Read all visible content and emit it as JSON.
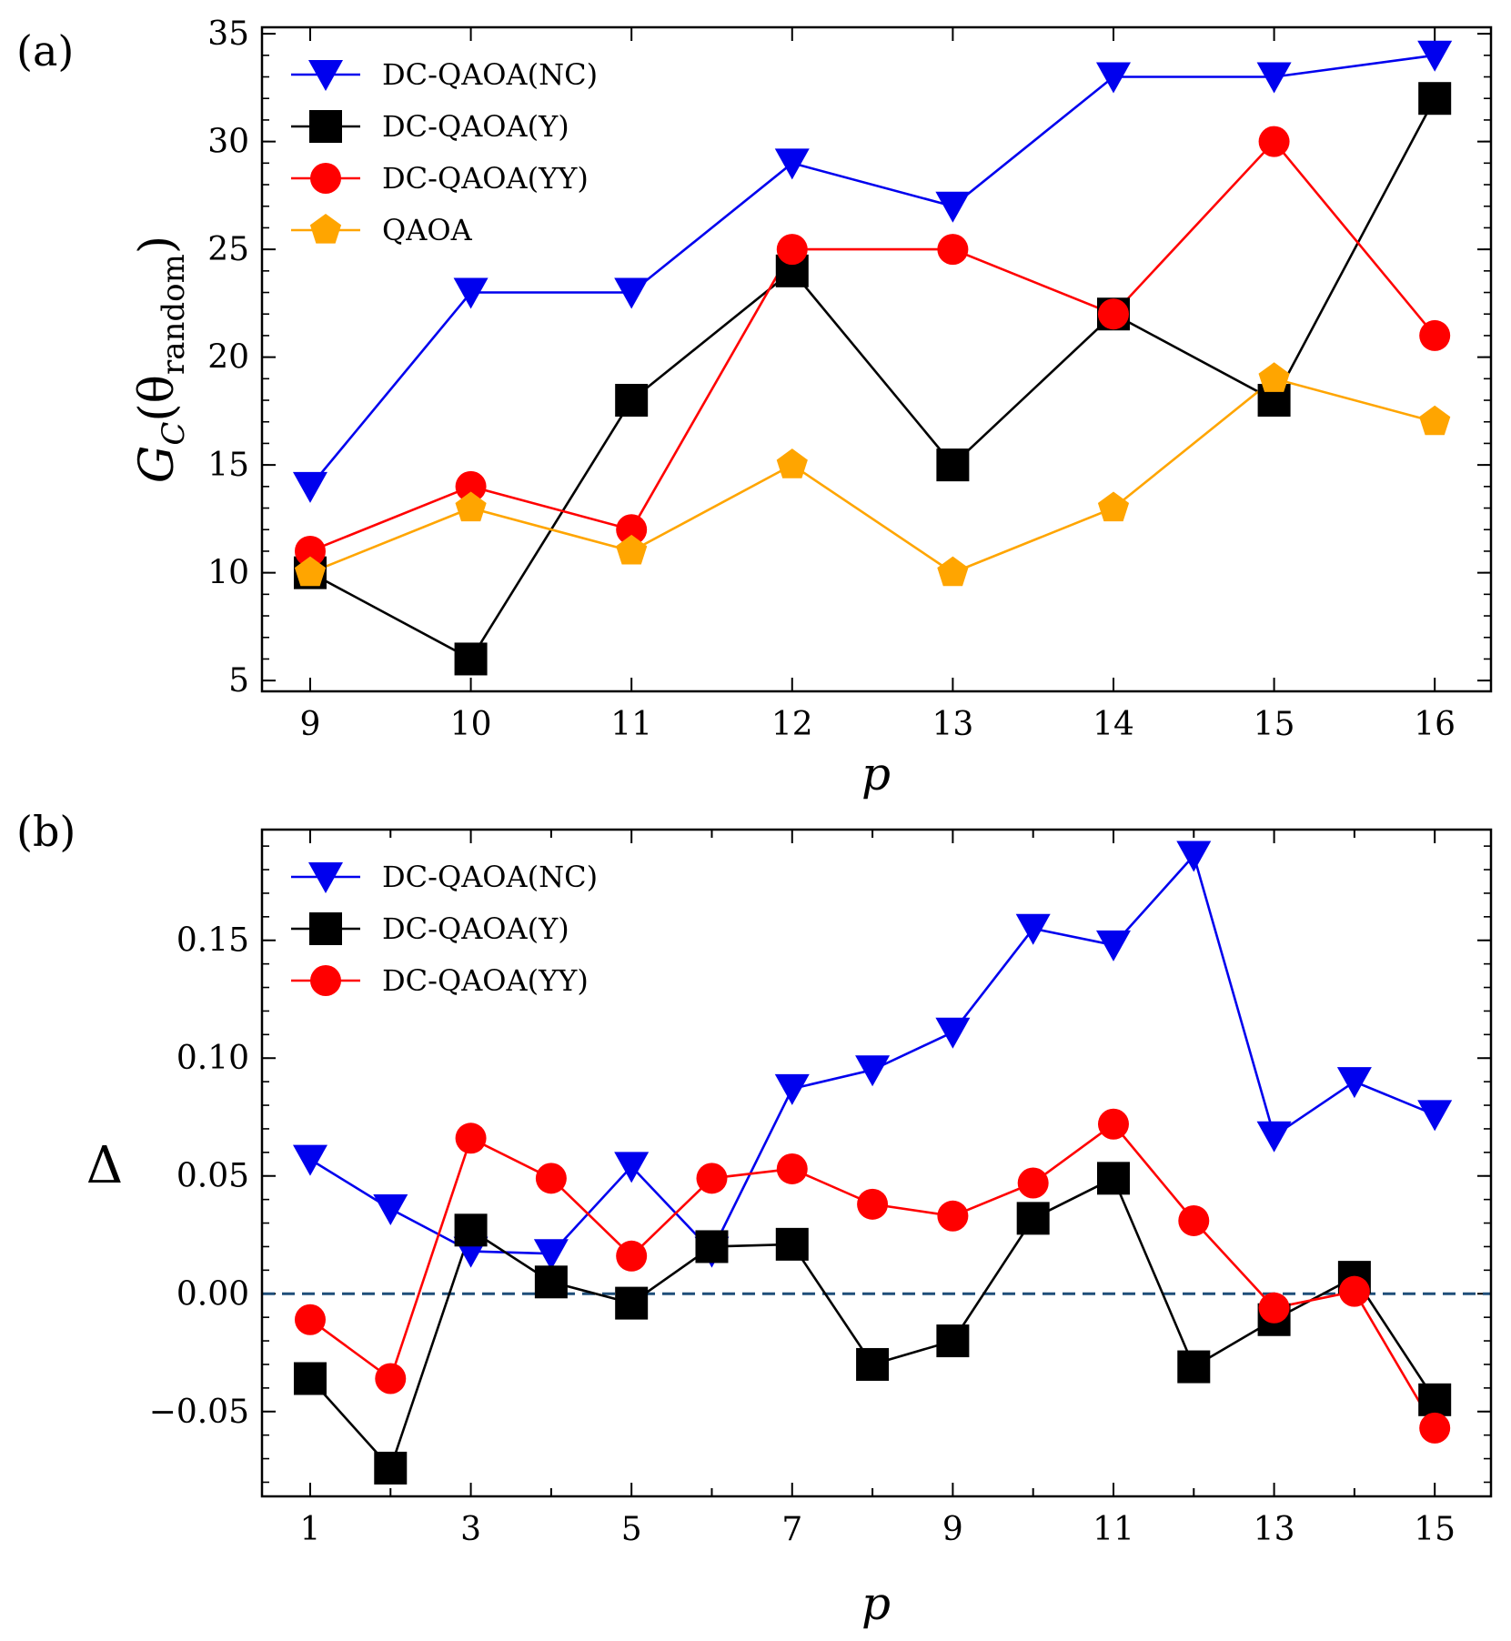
{
  "colors": {
    "DC-QAOA(NC)": "#0000ee",
    "DC-QAOA(Y)": "#000000",
    "DC-QAOA(YY)": "#ff0000",
    "QAOA": "#ffa500",
    "zero_line": "#1f4e79"
  },
  "chart_data": [
    {
      "type": "line",
      "panel_label": "(a)",
      "xlabel": "p",
      "ylabel": "G_C(θ_random)",
      "ylabel_parts": {
        "main": "G",
        "sub": "C",
        "paren": "(θ",
        "sub2": "random",
        "close": ")"
      },
      "x": [
        9,
        10,
        11,
        12,
        13,
        14,
        15,
        16
      ],
      "xlim": [
        8.7,
        16.35
      ],
      "ylim": [
        4.5,
        35.3
      ],
      "xticks": [
        9,
        10,
        11,
        12,
        13,
        14,
        15,
        16
      ],
      "yticks": [
        5,
        10,
        15,
        20,
        25,
        30,
        35
      ],
      "legend_position": "top-left",
      "series": [
        {
          "name": "DC-QAOA(NC)",
          "marker": "triangle-down",
          "values": [
            14,
            23,
            23,
            29,
            27,
            33,
            33,
            34
          ]
        },
        {
          "name": "DC-QAOA(Y)",
          "marker": "square",
          "values": [
            10,
            6,
            18,
            24,
            15,
            22,
            18,
            32
          ]
        },
        {
          "name": "DC-QAOA(YY)",
          "marker": "circle",
          "values": [
            11,
            14,
            12,
            25,
            25,
            22,
            30,
            21
          ]
        },
        {
          "name": "QAOA",
          "marker": "pentagon",
          "values": [
            10,
            13,
            11,
            15,
            10,
            13,
            19,
            17
          ]
        }
      ]
    },
    {
      "type": "line",
      "panel_label": "(b)",
      "xlabel": "p",
      "ylabel": "Δ",
      "x": [
        1,
        2,
        3,
        4,
        5,
        6,
        7,
        8,
        9,
        10,
        11,
        12,
        13,
        14,
        15
      ],
      "xlim": [
        0.4,
        15.7
      ],
      "ylim": [
        -0.086,
        0.197
      ],
      "xticks": [
        1,
        3,
        5,
        7,
        9,
        11,
        13,
        15
      ],
      "yticks": [
        -0.05,
        0.0,
        0.05,
        0.1,
        0.15
      ],
      "ytick_labels": [
        "−0.05",
        "0.00",
        "0.05",
        "0.10",
        "0.15"
      ],
      "reference_line": {
        "y": 0.0,
        "style": "dashed"
      },
      "legend_position": "top-left",
      "series": [
        {
          "name": "DC-QAOA(NC)",
          "marker": "triangle-down",
          "values": [
            0.057,
            0.036,
            0.018,
            0.017,
            0.054,
            0.018,
            0.087,
            0.095,
            0.111,
            0.155,
            0.148,
            0.186,
            0.067,
            0.09,
            0.076
          ]
        },
        {
          "name": "DC-QAOA(Y)",
          "marker": "square",
          "values": [
            -0.036,
            -0.074,
            0.027,
            0.005,
            -0.004,
            0.02,
            0.021,
            -0.03,
            -0.02,
            0.032,
            0.049,
            -0.031,
            -0.011,
            0.007,
            -0.045
          ]
        },
        {
          "name": "DC-QAOA(YY)",
          "marker": "circle",
          "values": [
            -0.011,
            -0.036,
            0.066,
            0.049,
            0.016,
            0.049,
            0.053,
            0.038,
            0.033,
            0.047,
            0.072,
            0.031,
            -0.006,
            0.001,
            -0.057
          ]
        }
      ]
    }
  ]
}
